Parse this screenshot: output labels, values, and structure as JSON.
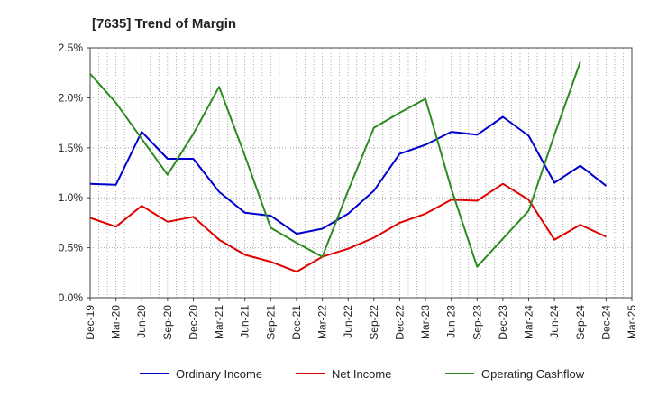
{
  "chart_data": {
    "type": "line",
    "title": "[7635]  Trend of Margin",
    "xlabel": "",
    "ylabel": "",
    "categories": [
      "Dec-19",
      "Mar-20",
      "Jun-20",
      "Sep-20",
      "Dec-20",
      "Mar-21",
      "Jun-21",
      "Sep-21",
      "Dec-21",
      "Mar-22",
      "Jun-22",
      "Sep-22",
      "Dec-22",
      "Mar-23",
      "Jun-23",
      "Sep-23",
      "Dec-23",
      "Mar-24",
      "Jun-24",
      "Sep-24",
      "Dec-24",
      "Mar-25"
    ],
    "ylim": [
      0,
      2.5
    ],
    "yticks": [
      0,
      0.5,
      1.0,
      1.5,
      2.0,
      2.5
    ],
    "ytick_labels": [
      "0.0%",
      "0.5%",
      "1.0%",
      "1.5%",
      "2.0%",
      "2.5%"
    ],
    "grid": true,
    "legend_position": "bottom",
    "series": [
      {
        "name": "Ordinary Income",
        "color": "#0000cc",
        "values": [
          1.14,
          1.13,
          1.66,
          1.39,
          1.39,
          1.06,
          0.85,
          0.82,
          0.64,
          0.69,
          0.84,
          1.07,
          1.44,
          1.53,
          1.66,
          1.63,
          1.81,
          1.62,
          1.15,
          1.32,
          1.12,
          null
        ]
      },
      {
        "name": "Net Income",
        "color": "#e00000",
        "values": [
          0.8,
          0.71,
          0.92,
          0.76,
          0.81,
          0.58,
          0.43,
          0.36,
          0.26,
          0.41,
          0.49,
          0.6,
          0.75,
          0.84,
          0.98,
          0.97,
          1.14,
          0.98,
          0.58,
          0.73,
          0.61,
          null
        ]
      },
      {
        "name": "Operating Cashflow",
        "color": "#2e8b22",
        "values": [
          2.24,
          1.95,
          1.59,
          1.23,
          1.64,
          2.11,
          1.42,
          0.7,
          0.55,
          0.41,
          1.07,
          1.7,
          1.85,
          1.99,
          1.09,
          0.31,
          0.59,
          0.87,
          1.63,
          2.36,
          null,
          null
        ]
      }
    ]
  }
}
